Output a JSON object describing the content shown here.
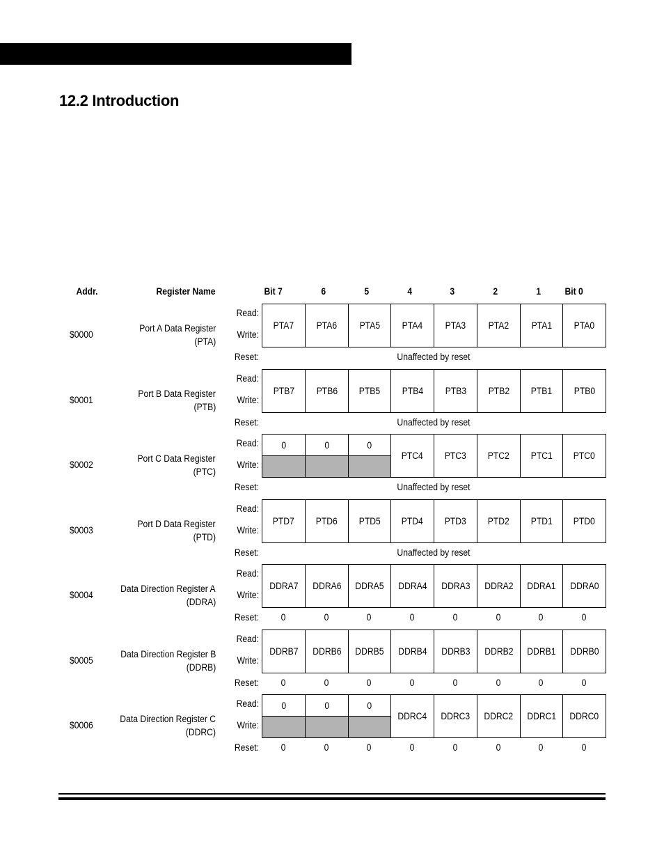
{
  "header_bar": true,
  "section_title": "12.2  Introduction",
  "table": {
    "headers": {
      "addr": "Addr.",
      "name": "Register Name",
      "bits": [
        "Bit 7",
        "6",
        "5",
        "4",
        "3",
        "2",
        "1",
        "Bit 0"
      ]
    },
    "labels": {
      "read": "Read:",
      "write": "Write:",
      "reset": "Reset:"
    },
    "registers": [
      {
        "addr": "$0000",
        "name": [
          "Port A Data Register",
          "(PTA)"
        ],
        "bits": [
          "PTA7",
          "PTA6",
          "PTA5",
          "PTA4",
          "PTA3",
          "PTA2",
          "PTA1",
          "PTA0"
        ],
        "reset": "Unaffected by reset"
      },
      {
        "addr": "$0001",
        "name": [
          "Port B Data Register",
          "(PTB)"
        ],
        "bits": [
          "PTB7",
          "PTB6",
          "PTB5",
          "PTB4",
          "PTB3",
          "PTB2",
          "PTB1",
          "PTB0"
        ],
        "reset": "Unaffected by reset"
      },
      {
        "addr": "$0002",
        "name": [
          "Port C Data Register",
          "(PTC)"
        ],
        "bits": [
          {
            "read": "0"
          },
          {
            "read": "0"
          },
          {
            "read": "0"
          },
          "PTC4",
          "PTC3",
          "PTC2",
          "PTC1",
          "PTC0"
        ],
        "reset": "Unaffected by reset"
      },
      {
        "addr": "$0003",
        "name": [
          "Port D Data Register",
          "(PTD)"
        ],
        "bits": [
          "PTD7",
          "PTD6",
          "PTD5",
          "PTD4",
          "PTD3",
          "PTD2",
          "PTD1",
          "PTD0"
        ],
        "reset": "Unaffected by reset"
      },
      {
        "addr": "$0004",
        "name": [
          "Data Direction Register A",
          "(DDRA)"
        ],
        "bits": [
          "DDRA7",
          "DDRA6",
          "DDRA5",
          "DDRA4",
          "DDRA3",
          "DDRA2",
          "DDRA1",
          "DDRA0"
        ],
        "reset": [
          "0",
          "0",
          "0",
          "0",
          "0",
          "0",
          "0",
          "0"
        ]
      },
      {
        "addr": "$0005",
        "name": [
          "Data Direction Register B",
          "(DDRB)"
        ],
        "bits": [
          "DDRB7",
          "DDRB6",
          "DDRB5",
          "DDRB4",
          "DDRB3",
          "DDRB2",
          "DDRB1",
          "DDRB0"
        ],
        "reset": [
          "0",
          "0",
          "0",
          "0",
          "0",
          "0",
          "0",
          "0"
        ]
      },
      {
        "addr": "$0006",
        "name": [
          "Data Direction Register C",
          "(DDRC)"
        ],
        "bits": [
          {
            "read": "0"
          },
          {
            "read": "0"
          },
          {
            "read": "0"
          },
          "DDRC4",
          "DDRC3",
          "DDRC2",
          "DDRC1",
          "DDRC0"
        ],
        "reset": [
          "0",
          "0",
          "0",
          "0",
          "0",
          "0",
          "0",
          "0"
        ]
      }
    ],
    "unimplemented_color": "#b3b3b3"
  }
}
